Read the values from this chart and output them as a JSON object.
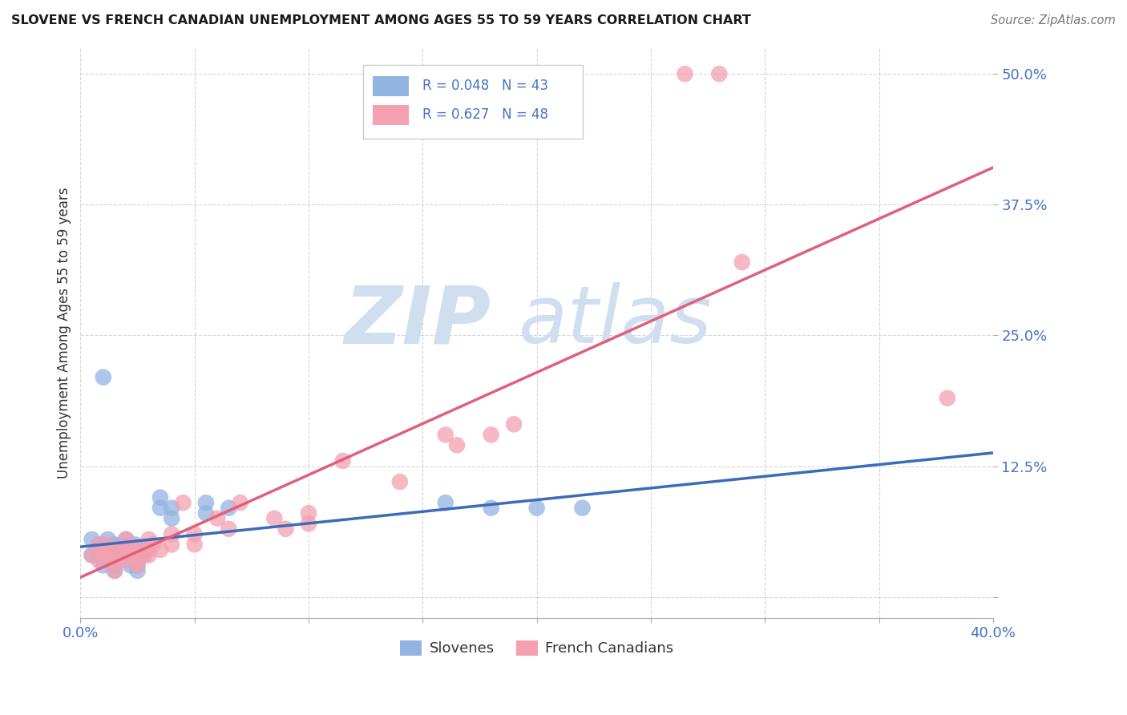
{
  "title": "SLOVENE VS FRENCH CANADIAN UNEMPLOYMENT AMONG AGES 55 TO 59 YEARS CORRELATION CHART",
  "source": "Source: ZipAtlas.com",
  "ylabel": "Unemployment Among Ages 55 to 59 years",
  "xlim": [
    0.0,
    0.4
  ],
  "ylim": [
    -0.02,
    0.525
  ],
  "yticks": [
    0.0,
    0.125,
    0.25,
    0.375,
    0.5
  ],
  "ytick_labels": [
    "",
    "12.5%",
    "25.0%",
    "37.5%",
    "50.0%"
  ],
  "slovene_color": "#92b4e3",
  "french_color": "#f4a0b0",
  "slovene_line_color": "#3c6bba",
  "french_line_color": "#e0607a",
  "slovene_R": 0.048,
  "slovene_N": 43,
  "french_R": 0.627,
  "french_N": 48,
  "tick_color": "#4472c4",
  "watermark_color": "#d0dff0",
  "background_color": "#ffffff",
  "grid_color": "#cccccc",
  "slovene_scatter": [
    [
      0.005,
      0.055
    ],
    [
      0.005,
      0.04
    ],
    [
      0.008,
      0.05
    ],
    [
      0.008,
      0.04
    ],
    [
      0.01,
      0.035
    ],
    [
      0.01,
      0.05
    ],
    [
      0.01,
      0.04
    ],
    [
      0.01,
      0.03
    ],
    [
      0.012,
      0.055
    ],
    [
      0.012,
      0.045
    ],
    [
      0.013,
      0.04
    ],
    [
      0.013,
      0.035
    ],
    [
      0.015,
      0.05
    ],
    [
      0.015,
      0.04
    ],
    [
      0.015,
      0.03
    ],
    [
      0.015,
      0.025
    ],
    [
      0.018,
      0.05
    ],
    [
      0.018,
      0.04
    ],
    [
      0.02,
      0.055
    ],
    [
      0.02,
      0.045
    ],
    [
      0.022,
      0.05
    ],
    [
      0.022,
      0.04
    ],
    [
      0.022,
      0.035
    ],
    [
      0.022,
      0.03
    ],
    [
      0.024,
      0.05
    ],
    [
      0.025,
      0.04
    ],
    [
      0.025,
      0.035
    ],
    [
      0.025,
      0.03
    ],
    [
      0.025,
      0.025
    ],
    [
      0.028,
      0.045
    ],
    [
      0.028,
      0.04
    ],
    [
      0.01,
      0.21
    ],
    [
      0.035,
      0.095
    ],
    [
      0.035,
      0.085
    ],
    [
      0.04,
      0.085
    ],
    [
      0.04,
      0.075
    ],
    [
      0.055,
      0.09
    ],
    [
      0.055,
      0.08
    ],
    [
      0.065,
      0.085
    ],
    [
      0.16,
      0.09
    ],
    [
      0.18,
      0.085
    ],
    [
      0.2,
      0.085
    ],
    [
      0.22,
      0.085
    ]
  ],
  "french_scatter": [
    [
      0.005,
      0.04
    ],
    [
      0.008,
      0.05
    ],
    [
      0.008,
      0.035
    ],
    [
      0.01,
      0.045
    ],
    [
      0.01,
      0.04
    ],
    [
      0.012,
      0.05
    ],
    [
      0.012,
      0.04
    ],
    [
      0.013,
      0.035
    ],
    [
      0.015,
      0.045
    ],
    [
      0.015,
      0.035
    ],
    [
      0.015,
      0.025
    ],
    [
      0.018,
      0.04
    ],
    [
      0.02,
      0.055
    ],
    [
      0.02,
      0.045
    ],
    [
      0.02,
      0.035
    ],
    [
      0.022,
      0.05
    ],
    [
      0.022,
      0.04
    ],
    [
      0.025,
      0.045
    ],
    [
      0.025,
      0.035
    ],
    [
      0.025,
      0.03
    ],
    [
      0.028,
      0.04
    ],
    [
      0.03,
      0.055
    ],
    [
      0.03,
      0.045
    ],
    [
      0.03,
      0.04
    ],
    [
      0.032,
      0.05
    ],
    [
      0.035,
      0.045
    ],
    [
      0.04,
      0.06
    ],
    [
      0.04,
      0.05
    ],
    [
      0.045,
      0.09
    ],
    [
      0.05,
      0.06
    ],
    [
      0.05,
      0.05
    ],
    [
      0.06,
      0.075
    ],
    [
      0.065,
      0.065
    ],
    [
      0.07,
      0.09
    ],
    [
      0.085,
      0.075
    ],
    [
      0.09,
      0.065
    ],
    [
      0.1,
      0.08
    ],
    [
      0.1,
      0.07
    ],
    [
      0.115,
      0.13
    ],
    [
      0.14,
      0.11
    ],
    [
      0.16,
      0.155
    ],
    [
      0.165,
      0.145
    ],
    [
      0.18,
      0.155
    ],
    [
      0.19,
      0.165
    ],
    [
      0.265,
      0.5
    ],
    [
      0.28,
      0.5
    ],
    [
      0.29,
      0.32
    ],
    [
      0.38,
      0.19
    ]
  ]
}
